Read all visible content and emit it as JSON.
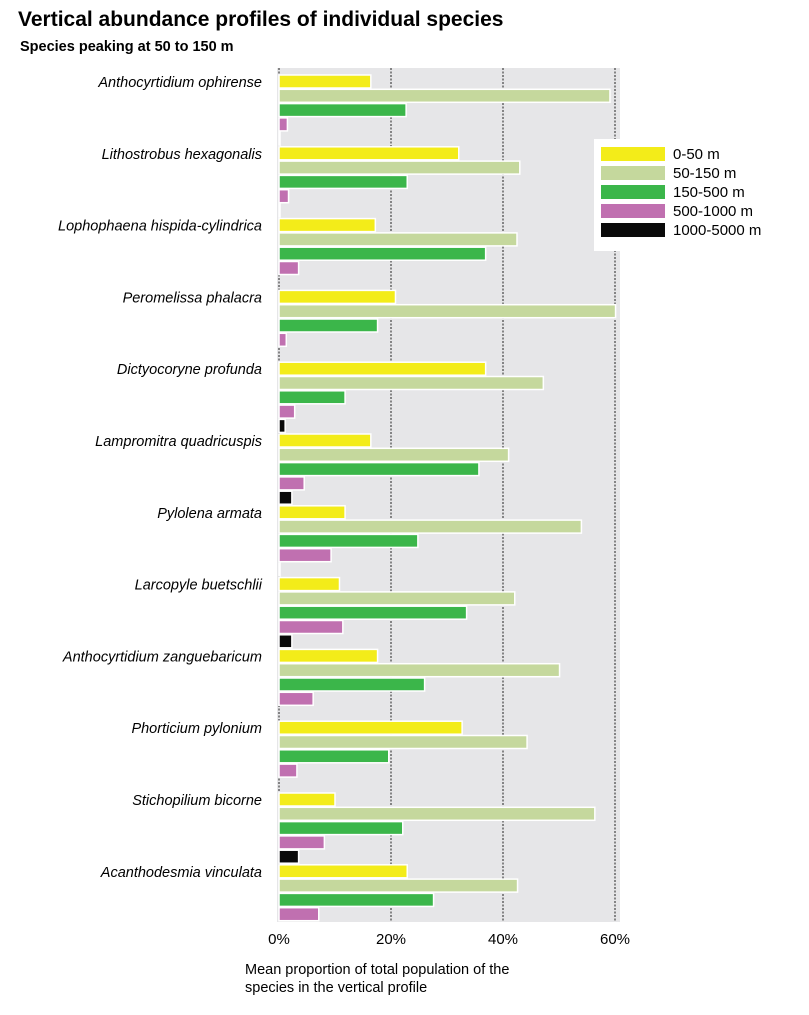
{
  "chart_data": {
    "type": "bar",
    "orientation": "horizontal",
    "title": "Vertical abundance profiles of individual species",
    "subtitle": "Species peaking at 50 to 150 m",
    "xlabel": "Mean proportion of total population of the species in the vertical profile",
    "xlabel_lines": [
      "Mean proportion of total population of the",
      "species in the vertical profile"
    ],
    "ylabel": "",
    "xlim": [
      0,
      60
    ],
    "xticks": [
      0,
      20,
      40,
      60
    ],
    "xtick_labels": [
      "0%",
      "20%",
      "40%",
      "60%"
    ],
    "grid": true,
    "legend_position": "top-right",
    "categories": [
      "Anthocyrtidium ophirense",
      "Lithostrobus hexagonalis",
      "Lophophaena hispida-cylindrica",
      "Peromelissa phalacra",
      "Dictyocoryne profunda",
      "Lampromitra quadricuspis",
      "Pylolena armata",
      "Larcopyle buetschlii",
      "Anthocyrtidium zanguebaricum",
      "Phorticium pylonium",
      "Stichopilium bicorne",
      "Acanthodesmia vinculata"
    ],
    "series": [
      {
        "name": "0-50 m",
        "color": "#f3ec19",
        "values": [
          16.4,
          32.1,
          17.2,
          20.8,
          36.9,
          16.4,
          11.8,
          10.8,
          17.6,
          32.7,
          10.0,
          22.9
        ]
      },
      {
        "name": "50-150 m",
        "color": "#c5d89d",
        "values": [
          59.1,
          43.0,
          42.5,
          60.1,
          47.2,
          41.0,
          54.0,
          42.1,
          50.1,
          44.3,
          56.4,
          42.6
        ]
      },
      {
        "name": "150-500 m",
        "color": "#3bb64a",
        "values": [
          22.7,
          22.9,
          36.9,
          17.6,
          11.8,
          35.7,
          24.8,
          33.5,
          26.0,
          19.6,
          22.1,
          27.6
        ]
      },
      {
        "name": "500-1000 m",
        "color": "#c070b0",
        "values": [
          1.5,
          1.7,
          3.5,
          1.3,
          2.8,
          4.5,
          9.3,
          11.4,
          6.1,
          3.2,
          8.1,
          7.1
        ]
      },
      {
        "name": "1000-5000 m",
        "color": "#0a0a0a",
        "values": [
          0.1,
          0.1,
          0,
          0,
          1.1,
          2.3,
          0.1,
          2.3,
          0,
          0,
          3.5,
          0
        ]
      }
    ]
  }
}
